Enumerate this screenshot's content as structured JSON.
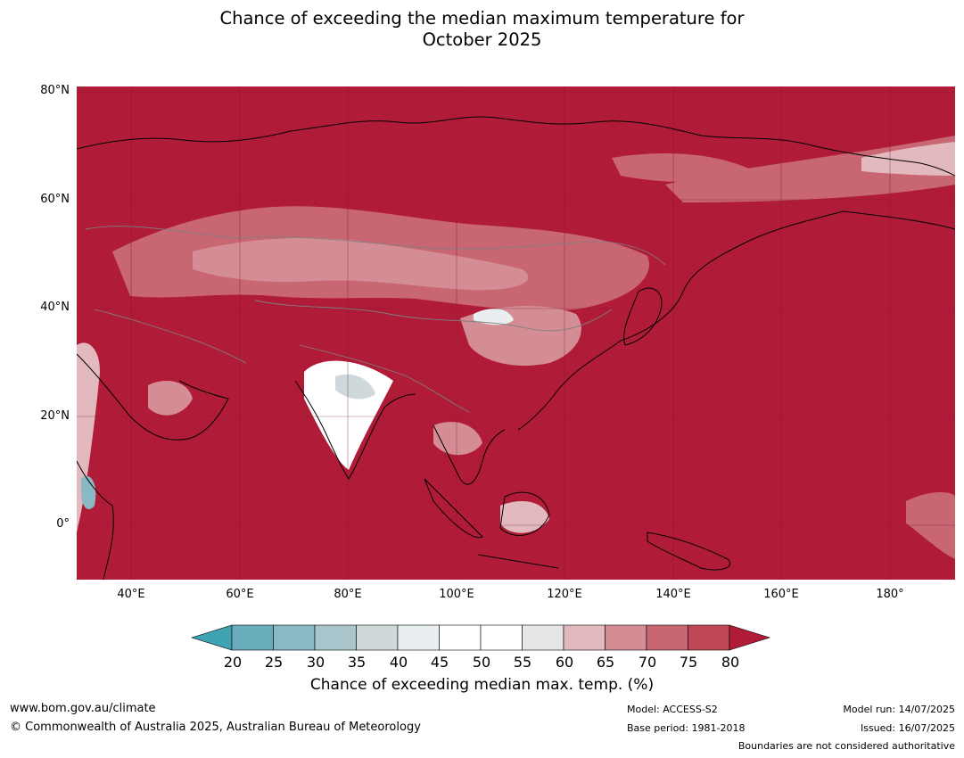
{
  "title": {
    "line1": "Chance of exceeding the median maximum temperature for",
    "line2": "October 2025"
  },
  "map": {
    "projection": "plate carree",
    "lon_range": [
      30,
      192
    ],
    "lat_range": [
      -10,
      81
    ],
    "background_color": "#b01c38",
    "gridlines": true,
    "lat_labels": [
      "80°N",
      "60°N",
      "40°N",
      "20°N",
      "0°"
    ],
    "lon_labels": [
      "40°E",
      "60°E",
      "80°E",
      "100°E",
      "120°E",
      "140°E",
      "160°E",
      "180°"
    ]
  },
  "colorbar": {
    "ticks": [
      "20",
      "25",
      "30",
      "35",
      "40",
      "45",
      "50",
      "55",
      "60",
      "65",
      "70",
      "75",
      "80"
    ],
    "colors": [
      "#3fa3b2",
      "#69adbd",
      "#88b9c5",
      "#a9c6cd",
      "#cfd9dc",
      "#e9eff0",
      "#ffffff",
      "#ffffff",
      "#e6e6e6",
      "#e2b9be",
      "#d48c95",
      "#c86671",
      "#bf4654",
      "#b01c38"
    ],
    "label": "Chance of exceeding median max. temp. (%)"
  },
  "footer": {
    "url": "www.bom.gov.au/climate",
    "copyright": "© Commonwealth of Australia 2025, Australian Bureau of Meteorology",
    "model": "Model: ACCESS-S2",
    "base_period": "Base period: 1981-2018",
    "model_run": "Model run: 14/07/2025",
    "issued": "Issued: 16/07/2025",
    "disclaimer": "Boundaries are not considered authoritative"
  }
}
